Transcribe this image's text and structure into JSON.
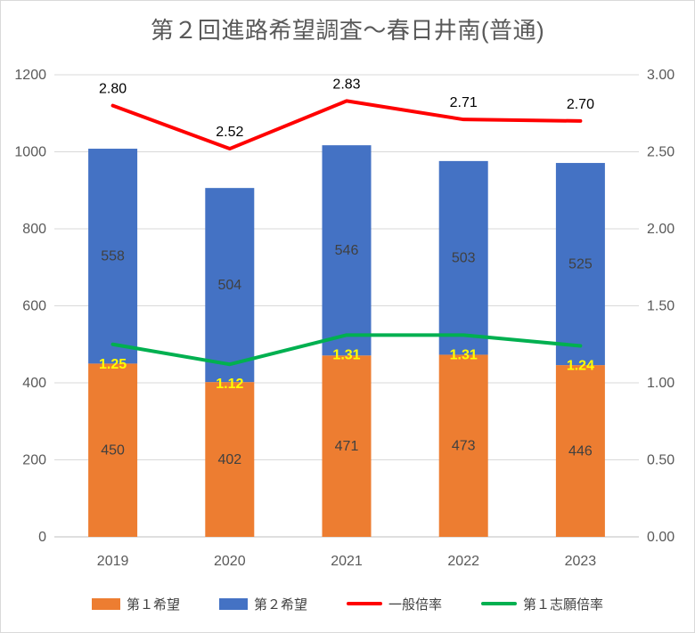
{
  "chart_data": {
    "type": "combo-stacked-bar-line",
    "title": "第２回進路希望調査～春日井南(普通)",
    "categories": [
      "2019",
      "2020",
      "2021",
      "2022",
      "2023"
    ],
    "bar_series": [
      {
        "name": "第１希望",
        "color": "#ED7D31",
        "axis": "left",
        "values": [
          450,
          402,
          471,
          473,
          446
        ],
        "labels": [
          "450",
          "402",
          "471",
          "473",
          "446"
        ]
      },
      {
        "name": "第２希望",
        "color": "#4472C4",
        "axis": "left",
        "stacked": true,
        "values": [
          558,
          504,
          546,
          503,
          525
        ],
        "labels": [
          "558",
          "504",
          "546",
          "503",
          "525"
        ]
      }
    ],
    "line_series": [
      {
        "name": "一般倍率",
        "color": "#FF0000",
        "axis": "right",
        "values": [
          2.8,
          2.52,
          2.83,
          2.71,
          2.7
        ],
        "labels": [
          "2.80",
          "2.52",
          "2.83",
          "2.71",
          "2.70"
        ],
        "label_color": "#000000",
        "label_bold": false,
        "label_position": "above"
      },
      {
        "name": "第１志願倍率",
        "color": "#00B050",
        "axis": "right",
        "values": [
          1.25,
          1.12,
          1.31,
          1.31,
          1.24
        ],
        "labels": [
          "1.25",
          "1.12",
          "1.31",
          "1.31",
          "1.24"
        ],
        "label_color": "#FFFF00",
        "label_bold": true,
        "label_position": "below"
      }
    ],
    "left_axis": {
      "min": 0,
      "max": 1200,
      "step": 200,
      "ticks": [
        "0",
        "200",
        "400",
        "600",
        "800",
        "1000",
        "1200"
      ]
    },
    "right_axis": {
      "min": 0,
      "max": 3,
      "step": 0.5,
      "ticks": [
        "0.00",
        "0.50",
        "1.00",
        "1.50",
        "2.00",
        "2.50",
        "3.00"
      ]
    },
    "grid": true,
    "legend_position": "bottom",
    "colors": {
      "title": "#595959",
      "axis_labels": "#595959",
      "bar_labels": "#404040",
      "gridline": "#D9D9D9",
      "axis_line": "#BFBFBF",
      "background": "#FFFFFF"
    }
  }
}
